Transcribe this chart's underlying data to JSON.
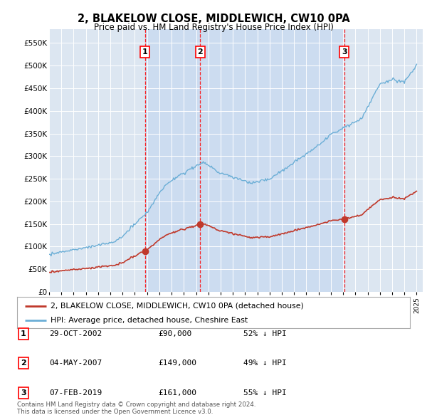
{
  "title": "2, BLAKELOW CLOSE, MIDDLEWICH, CW10 0PA",
  "subtitle": "Price paid vs. HM Land Registry's House Price Index (HPI)",
  "ylim": [
    0,
    580000
  ],
  "yticks": [
    0,
    50000,
    100000,
    150000,
    200000,
    250000,
    300000,
    350000,
    400000,
    450000,
    500000,
    550000
  ],
  "ytick_labels": [
    "£0",
    "£50K",
    "£100K",
    "£150K",
    "£200K",
    "£250K",
    "£300K",
    "£350K",
    "£400K",
    "£450K",
    "£500K",
    "£550K"
  ],
  "hpi_color": "#6baed6",
  "price_color": "#c0392b",
  "plot_bg": "#dce6f1",
  "highlight_bg": "#c6d9f0",
  "sale_dates": [
    2002.83,
    2007.33,
    2019.09
  ],
  "sale_prices": [
    90000,
    149000,
    161000
  ],
  "sale_labels": [
    "1",
    "2",
    "3"
  ],
  "legend_line1": "2, BLAKELOW CLOSE, MIDDLEWICH, CW10 0PA (detached house)",
  "legend_line2": "HPI: Average price, detached house, Cheshire East",
  "footnote": "Contains HM Land Registry data © Crown copyright and database right 2024.\nThis data is licensed under the Open Government Licence v3.0.",
  "table_rows": [
    [
      "1",
      "29-OCT-2002",
      "£90,000",
      "52% ↓ HPI"
    ],
    [
      "2",
      "04-MAY-2007",
      "£149,000",
      "49% ↓ HPI"
    ],
    [
      "3",
      "07-FEB-2019",
      "£161,000",
      "55% ↓ HPI"
    ]
  ]
}
